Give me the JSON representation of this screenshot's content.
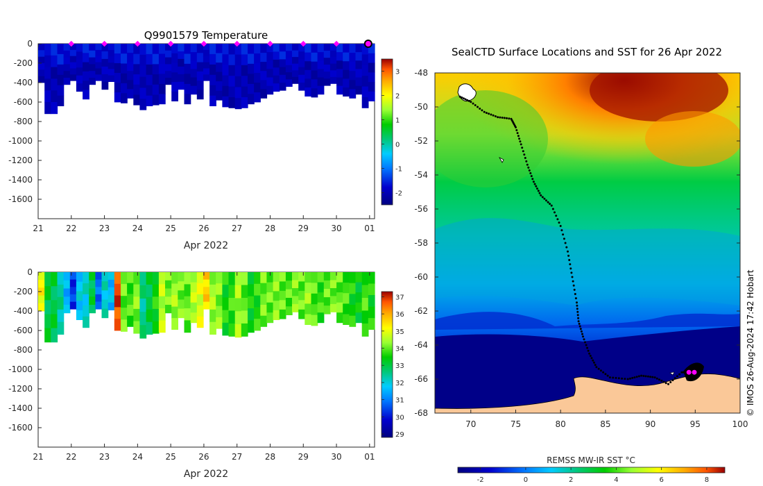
{
  "chart_data": [
    {
      "type": "heatmap",
      "name": "temperature-profile",
      "title": "Q9901579  Temperature",
      "xlabel": "Apr 2022",
      "x_ticks": [
        "21",
        "22",
        "23",
        "24",
        "25",
        "26",
        "27",
        "28",
        "29",
        "30",
        "01"
      ],
      "xlim": [
        21,
        31.15
      ],
      "ylim": [
        -1800,
        0
      ],
      "y_ticks": [
        0,
        -200,
        -400,
        -600,
        -800,
        -1000,
        -1200,
        -1400,
        -1600
      ],
      "colorbar": {
        "ticks": [
          3,
          2,
          1,
          0,
          -1,
          -2
        ],
        "range": [
          -2.5,
          3.5
        ]
      },
      "marker_days": [
        22,
        23,
        24,
        25,
        26,
        27,
        28,
        29,
        30
      ],
      "current_marker_day": 31,
      "profile_depths_m": [
        400,
        720,
        720,
        640,
        420,
        380,
        490,
        570,
        420,
        380,
        470,
        390,
        600,
        610,
        560,
        630,
        680,
        640,
        630,
        620,
        420,
        590,
        470,
        620,
        520,
        570,
        380,
        640,
        580,
        650,
        660,
        670,
        660,
        620,
        600,
        560,
        520,
        490,
        480,
        440,
        410,
        480,
        540,
        550,
        520,
        430,
        410,
        520,
        540,
        560,
        520,
        660,
        590
      ]
    },
    {
      "type": "heatmap",
      "name": "salinity-profile",
      "title": "",
      "xlabel": "Apr 2022",
      "x_ticks": [
        "21",
        "22",
        "23",
        "24",
        "25",
        "26",
        "27",
        "28",
        "29",
        "30",
        "01"
      ],
      "xlim": [
        21,
        31.15
      ],
      "ylim": [
        -1800,
        0
      ],
      "y_ticks": [
        0,
        -200,
        -400,
        -600,
        -800,
        -1000,
        -1200,
        -1400,
        -1600
      ],
      "colorbar": {
        "ticks": [
          37,
          36,
          35,
          34,
          33,
          32,
          31,
          30,
          29
        ],
        "range": [
          28.8,
          37.3
        ]
      },
      "profile_salinity": [
        35.2,
        33.0,
        33.0,
        32.4,
        31.5,
        30.3,
        31.8,
        32.0,
        33.0,
        30.8,
        32.1,
        31.6,
        36.8,
        34.0,
        33.8,
        34.2,
        32.5,
        33.0,
        33.5,
        34.6,
        34.1,
        34.4,
        34.1,
        34.0,
        34.6,
        34.9,
        35.6,
        34.4,
        34.2,
        33.5,
        33.7,
        34.4,
        34.0,
        33.4,
        33.6,
        34.1,
        34.0,
        34.2,
        34.0,
        33.9,
        34.2,
        34.0,
        34.3,
        33.9,
        33.7,
        34.0,
        34.1,
        34.0,
        33.8,
        33.5,
        33.3,
        33.8,
        33.5
      ]
    },
    {
      "type": "heatmap",
      "name": "sst-map",
      "title": "SealCTD Surface Locations and SST for 26 Apr 2022",
      "xlim": [
        66,
        100
      ],
      "ylim": [
        -68,
        -48
      ],
      "x_ticks": [
        70,
        75,
        80,
        85,
        90,
        95,
        100
      ],
      "y_ticks": [
        -48,
        -50,
        -52,
        -54,
        -56,
        -58,
        -60,
        -62,
        -64,
        -66,
        -68
      ],
      "colorbar": {
        "label": "REMSS MW-IR SST °C",
        "ticks": [
          "-2",
          "0",
          "2",
          "4",
          "6",
          "8"
        ],
        "range": [
          -3,
          8.8
        ]
      },
      "track": [
        [
          68.8,
          -49.4
        ],
        [
          70.0,
          -49.7
        ],
        [
          71.5,
          -50.3
        ],
        [
          73.0,
          -50.6
        ],
        [
          74.5,
          -50.7
        ],
        [
          75.0,
          -51.2
        ],
        [
          75.6,
          -52.2
        ],
        [
          76.3,
          -53.4
        ],
        [
          77.0,
          -54.4
        ],
        [
          77.8,
          -55.2
        ],
        [
          79.0,
          -55.8
        ],
        [
          80.0,
          -57.0
        ],
        [
          80.8,
          -58.5
        ],
        [
          81.3,
          -60.0
        ],
        [
          81.8,
          -61.5
        ],
        [
          82.0,
          -62.6
        ],
        [
          82.5,
          -63.5
        ],
        [
          83.2,
          -64.5
        ],
        [
          84.0,
          -65.3
        ],
        [
          85.5,
          -65.9
        ],
        [
          87.5,
          -66.0
        ],
        [
          89.0,
          -65.8
        ],
        [
          90.5,
          -65.9
        ],
        [
          92.0,
          -66.3
        ],
        [
          93.5,
          -65.6
        ],
        [
          94.5,
          -65.6
        ],
        [
          95.3,
          -65.3
        ]
      ],
      "latest_positions": [
        [
          94.3,
          -65.6
        ],
        [
          94.9,
          -65.6
        ]
      ],
      "credit": "© IMOS 26-Aug-2024 17:42 Hobart"
    }
  ],
  "colors": {
    "marker": "#ff00ff",
    "land": "#fac898",
    "no_data": "#ffffff",
    "track": "#000000"
  }
}
